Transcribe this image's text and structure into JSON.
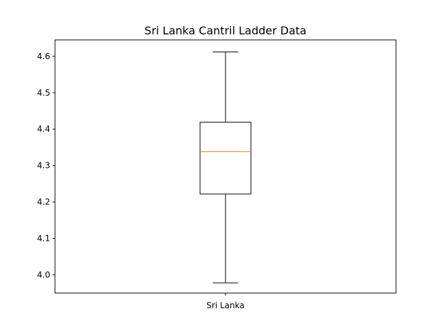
{
  "chart_data": {
    "type": "box",
    "title": "Sri Lanka Cantril Ladder Data",
    "xlabel": "",
    "ylabel": "",
    "categories": [
      "Sri Lanka"
    ],
    "boxes": [
      {
        "category": "Sri Lanka",
        "whisker_low": 3.978,
        "q1": 4.222,
        "median": 4.338,
        "q3": 4.419,
        "whisker_high": 4.612
      }
    ],
    "ylim": [
      3.95,
      4.645
    ],
    "yticks": [
      4.0,
      4.1,
      4.2,
      4.3,
      4.4,
      4.5,
      4.6
    ],
    "ytick_labels": [
      "4.0",
      "4.1",
      "4.2",
      "4.3",
      "4.4",
      "4.5",
      "4.6"
    ],
    "grid": false,
    "colors": {
      "box": "#000000",
      "median": "#ff7f0e",
      "axes": "#000000",
      "background": "#ffffff"
    }
  }
}
